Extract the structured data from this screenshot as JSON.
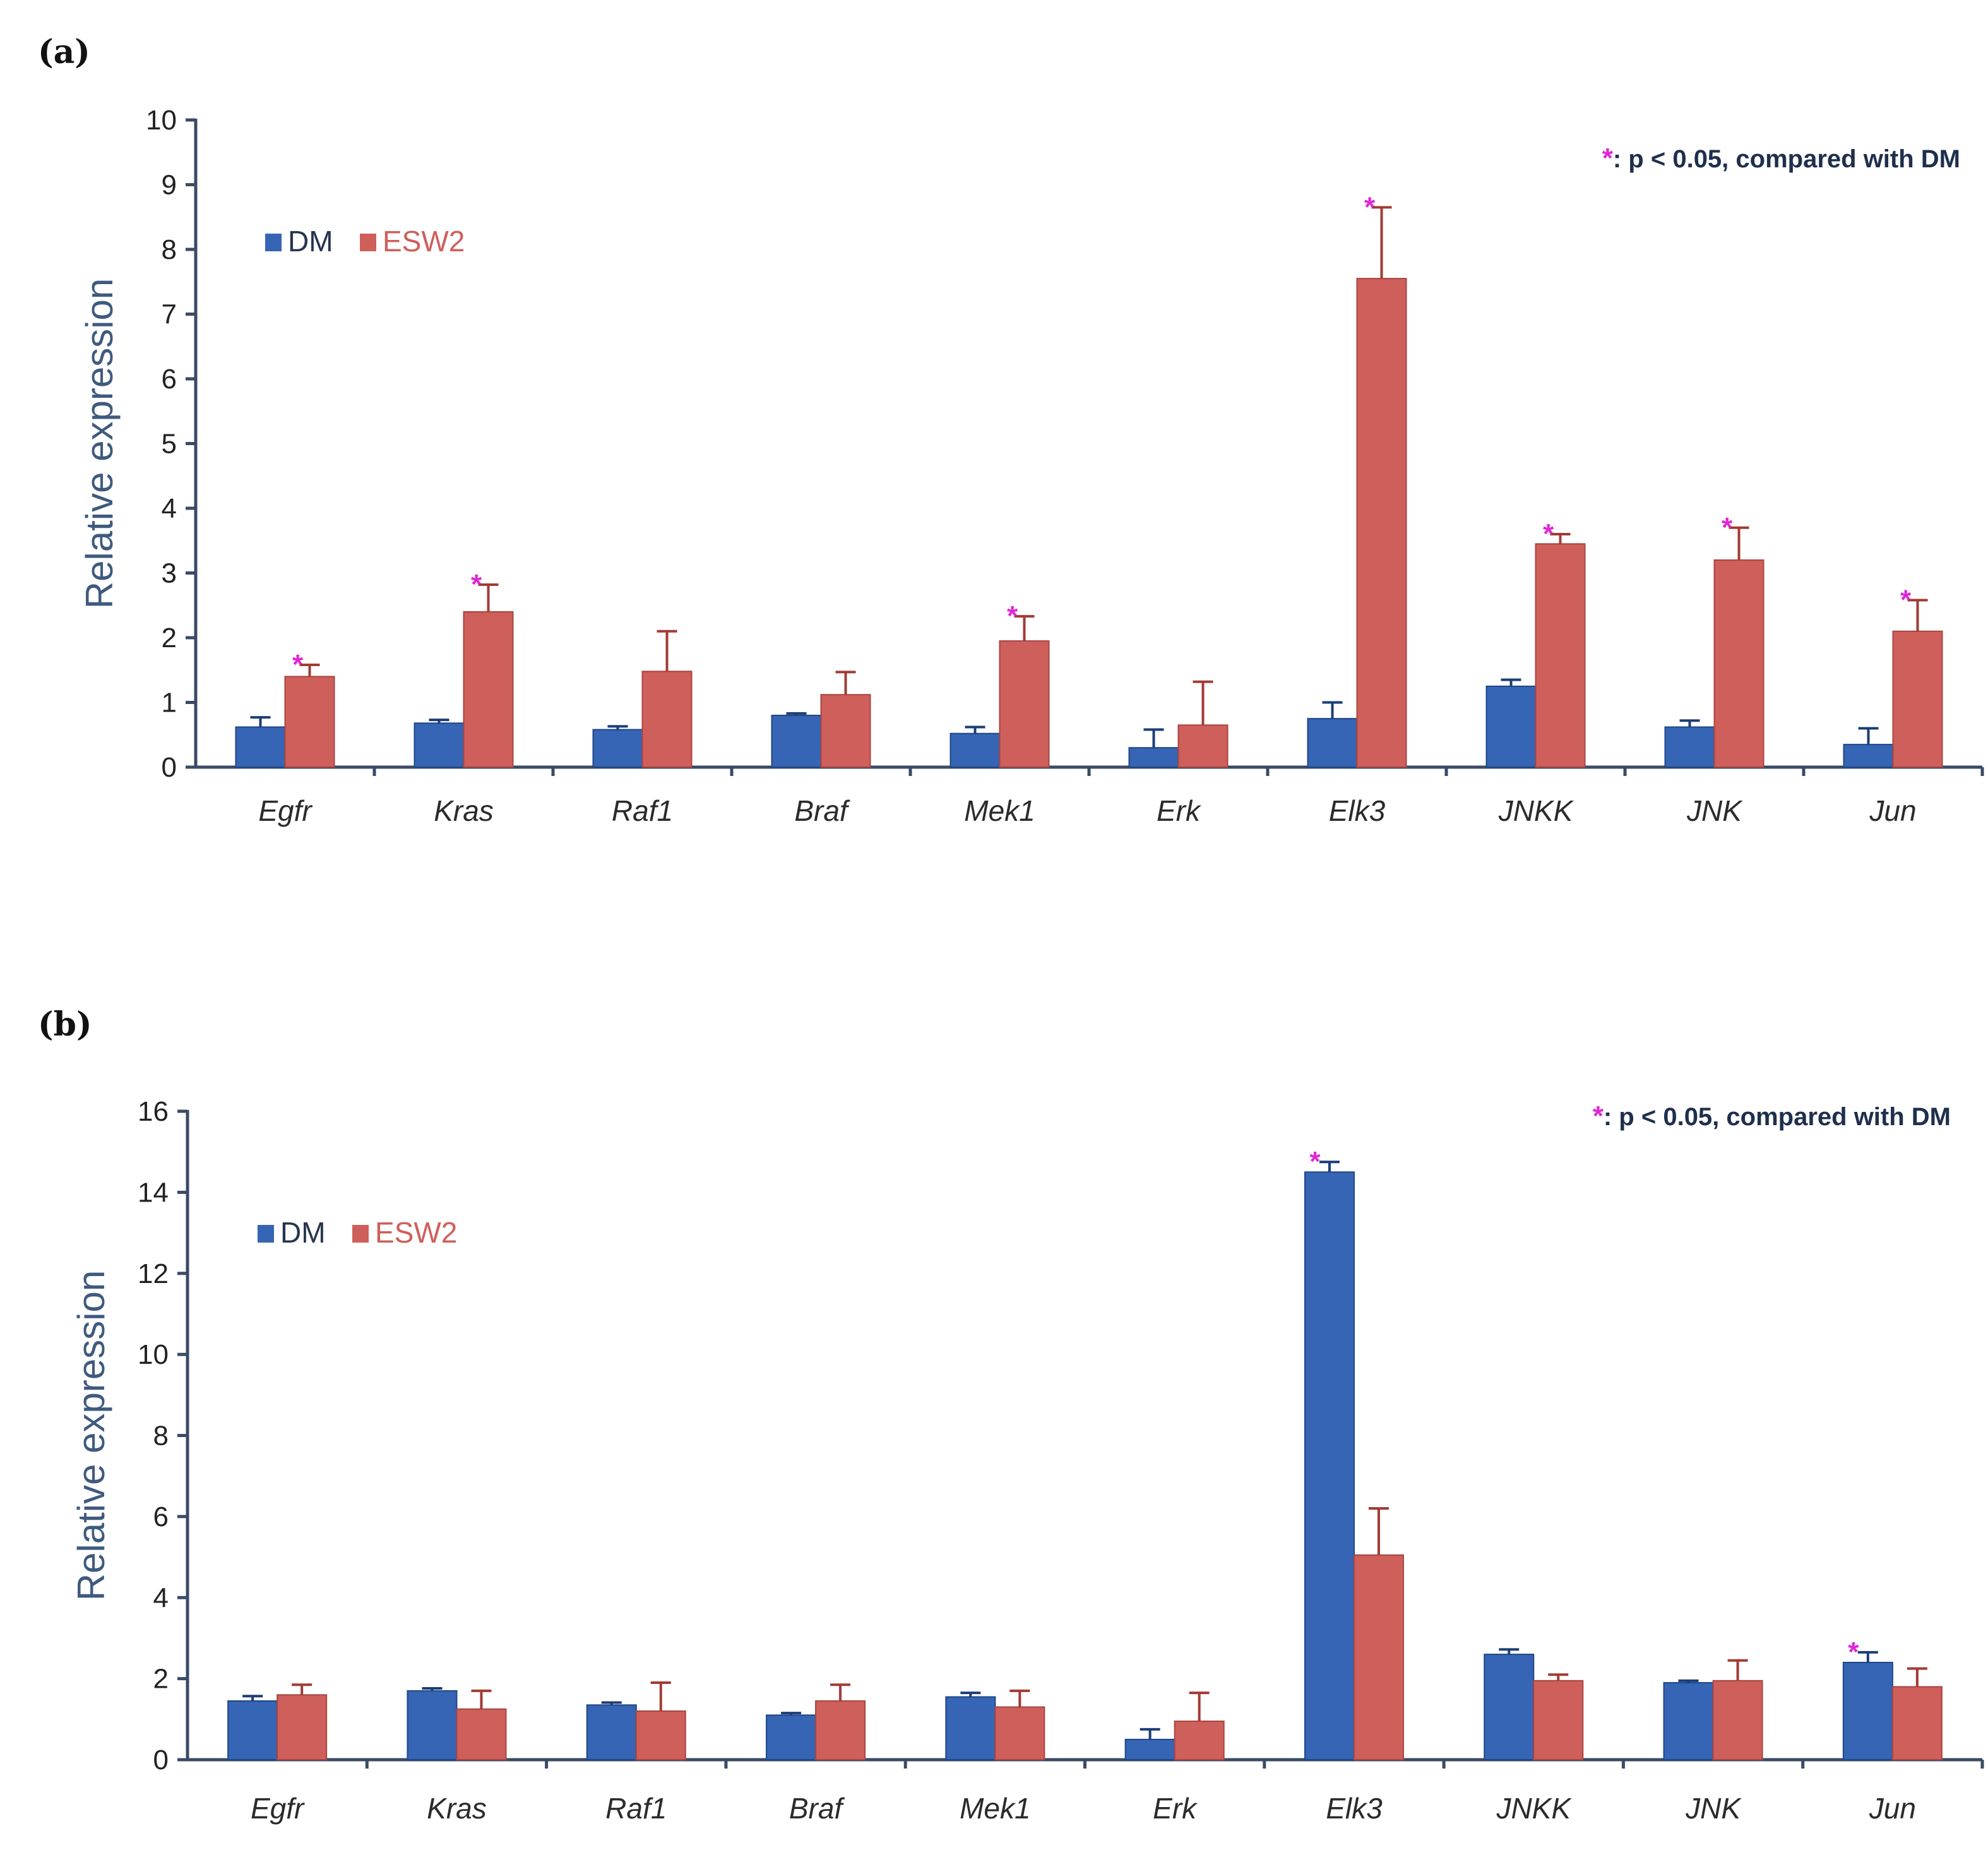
{
  "colors": {
    "dm": "#3565b4",
    "esw2": "#cf5f5b",
    "star": "#e025d6",
    "axis": "#3a4a66"
  },
  "chart_data": [
    {
      "panel": "(a)",
      "type": "bar",
      "ylabel": "Relative expression",
      "ylim": [
        0,
        10
      ],
      "yticks": [
        0,
        1,
        2,
        3,
        4,
        5,
        6,
        7,
        8,
        9,
        10
      ],
      "ytick_labels": [
        "0",
        "1",
        "2",
        "3",
        "4",
        "5",
        "6",
        "7",
        "8",
        "9",
        "10"
      ],
      "categories": [
        "Egfr",
        "Kras",
        "Raf1",
        "Braf",
        "Mek1",
        "Erk",
        "Elk3",
        "JNKK",
        "JNK",
        "Jun"
      ],
      "legend": [
        "DM",
        "ESW2"
      ],
      "legend_position": "upper-left",
      "note_star": "*",
      "note": ": p < 0.05, compared with DM",
      "series": [
        {
          "name": "DM",
          "values": [
            0.62,
            0.68,
            0.58,
            0.8,
            0.52,
            0.3,
            0.75,
            1.25,
            0.62,
            0.35
          ],
          "errors": [
            0.15,
            0.05,
            0.05,
            0.03,
            0.1,
            0.28,
            0.25,
            0.1,
            0.1,
            0.25
          ]
        },
        {
          "name": "ESW2",
          "values": [
            1.4,
            2.4,
            1.48,
            1.12,
            1.95,
            0.65,
            7.55,
            3.45,
            3.2,
            2.1
          ],
          "errors": [
            0.18,
            0.42,
            0.62,
            0.35,
            0.38,
            0.67,
            1.1,
            0.15,
            0.5,
            0.48
          ]
        }
      ],
      "significant": [
        true,
        true,
        false,
        false,
        true,
        false,
        true,
        true,
        true,
        true
      ]
    },
    {
      "panel": "(b)",
      "type": "bar",
      "ylabel": "Relative expression",
      "ylim": [
        0,
        16
      ],
      "yticks": [
        0,
        2,
        4,
        6,
        8,
        10,
        12,
        14,
        16
      ],
      "ytick_labels": [
        "0",
        "2",
        "4",
        "6",
        "8",
        "10",
        "12",
        "14",
        "16"
      ],
      "categories": [
        "Egfr",
        "Kras",
        "Raf1",
        "Braf",
        "Mek1",
        "Erk",
        "Elk3",
        "JNKK",
        "JNK",
        "Jun"
      ],
      "legend": [
        "DM",
        "ESW2"
      ],
      "legend_position": "upper-left",
      "note_star": "*",
      "note": ": p < 0.05, compared with DM",
      "series": [
        {
          "name": "DM",
          "values": [
            1.45,
            1.7,
            1.35,
            1.1,
            1.55,
            0.5,
            14.5,
            2.6,
            1.9,
            2.4
          ],
          "errors": [
            0.12,
            0.06,
            0.06,
            0.05,
            0.1,
            0.25,
            0.25,
            0.12,
            0.05,
            0.25
          ]
        },
        {
          "name": "ESW2",
          "values": [
            1.6,
            1.25,
            1.2,
            1.45,
            1.3,
            0.95,
            5.05,
            1.95,
            1.95,
            1.8
          ],
          "errors": [
            0.25,
            0.45,
            0.7,
            0.4,
            0.4,
            0.7,
            1.15,
            0.15,
            0.5,
            0.45
          ]
        }
      ],
      "significant_dm": [
        false,
        false,
        false,
        false,
        false,
        false,
        true,
        false,
        false,
        true
      ]
    }
  ]
}
